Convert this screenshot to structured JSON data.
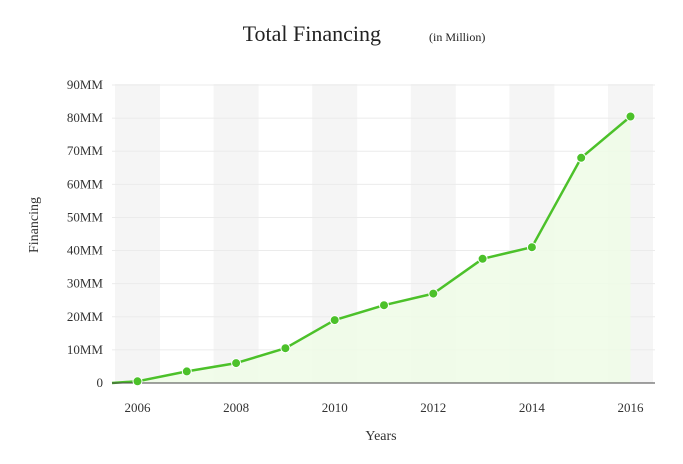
{
  "chart_data": {
    "type": "area",
    "title": "Total Financing",
    "subtitle": "(in Million)",
    "xlabel": "Years",
    "ylabel": "Financing",
    "x": [
      2006,
      2007,
      2008,
      2009,
      2010,
      2011,
      2012,
      2013,
      2014,
      2015,
      2016
    ],
    "x_ticks": [
      "2006",
      "2008",
      "2010",
      "2012",
      "2014",
      "2016"
    ],
    "y_ticks": [
      "0",
      "10MM",
      "20MM",
      "30MM",
      "40MM",
      "50MM",
      "60MM",
      "70MM",
      "80MM",
      "90MM"
    ],
    "series": [
      {
        "values": [
          0.5,
          3.5,
          6,
          10.5,
          19,
          23.5,
          27,
          37.5,
          41,
          68,
          80.5
        ]
      }
    ],
    "ylim": [
      0,
      90
    ],
    "xlim": [
      2005.5,
      2016.5
    ],
    "grid": true,
    "line_color": "#4cc12a",
    "fill_color": "#effbe6",
    "band_color": "#f5f5f5"
  }
}
